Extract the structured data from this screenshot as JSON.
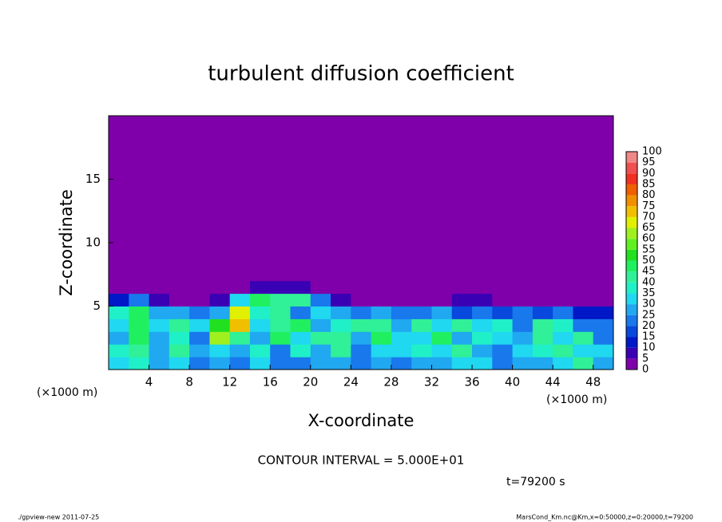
{
  "chart_data": {
    "type": "heatmap",
    "title": "turbulent diffusion coefficient",
    "xlabel": "X-coordinate",
    "ylabel": "Z-coordinate",
    "x_unit": "(×1000 m)",
    "y_unit": "(×1000 m)",
    "note": "CONTOUR INTERVAL = 5.000E+01",
    "time_label": "t=79200 s",
    "footer_left": "./gpview-new  2011-07-25",
    "footer_right": "MarsCond_Km.nc@Km,x=0:50000,z=0:20000,t=79200",
    "xlim": [
      0,
      50
    ],
    "ylim": [
      0,
      20
    ],
    "xticks": [
      4,
      8,
      12,
      16,
      20,
      24,
      28,
      32,
      36,
      40,
      44,
      48
    ],
    "yticks": [
      5,
      10,
      15
    ],
    "xbins": [
      0,
      2,
      4,
      6,
      8,
      10,
      12,
      14,
      16,
      18,
      20,
      22,
      24,
      26,
      28,
      30,
      32,
      34,
      36,
      38,
      40,
      42,
      44,
      46,
      48,
      50
    ],
    "ybins": [
      0,
      1,
      2,
      3,
      4,
      5,
      6,
      7,
      20
    ],
    "z": [
      [
        30,
        35,
        25,
        30,
        20,
        25,
        20,
        30,
        20,
        20,
        25,
        25,
        20,
        25,
        20,
        25,
        25,
        30,
        30,
        20,
        25,
        25,
        30,
        40,
        25
      ],
      [
        35,
        40,
        25,
        40,
        25,
        30,
        25,
        35,
        20,
        35,
        25,
        40,
        20,
        30,
        30,
        35,
        30,
        40,
        25,
        20,
        30,
        35,
        40,
        30,
        30
      ],
      [
        25,
        45,
        25,
        35,
        20,
        60,
        40,
        25,
        45,
        30,
        40,
        40,
        25,
        45,
        30,
        30,
        45,
        25,
        35,
        30,
        25,
        40,
        30,
        40,
        20
      ],
      [
        30,
        45,
        30,
        40,
        30,
        50,
        70,
        30,
        40,
        45,
        25,
        35,
        40,
        40,
        25,
        40,
        30,
        40,
        30,
        35,
        20,
        40,
        35,
        20,
        20
      ],
      [
        35,
        45,
        25,
        25,
        20,
        25,
        65,
        35,
        40,
        20,
        30,
        25,
        20,
        25,
        20,
        20,
        25,
        15,
        20,
        15,
        20,
        15,
        20,
        10,
        10
      ],
      [
        10,
        20,
        5,
        0,
        0,
        5,
        30,
        45,
        40,
        40,
        20,
        5,
        0,
        0,
        0,
        0,
        0,
        5,
        5,
        0,
        0,
        0,
        0,
        0,
        0
      ],
      [
        0,
        0,
        0,
        0,
        0,
        0,
        0,
        5,
        5,
        5,
        0,
        0,
        0,
        0,
        0,
        0,
        0,
        0,
        0,
        0,
        0,
        0,
        0,
        0,
        0
      ],
      [
        0,
        0,
        0,
        0,
        0,
        0,
        0,
        0,
        0,
        0,
        0,
        0,
        0,
        0,
        0,
        0,
        0,
        0,
        0,
        0,
        0,
        0,
        0,
        0,
        0
      ]
    ],
    "levels": [
      0,
      5,
      10,
      15,
      20,
      25,
      30,
      35,
      40,
      45,
      50,
      55,
      60,
      65,
      70,
      75,
      80,
      85,
      90,
      95,
      100
    ],
    "colors": [
      "#7f00aa",
      "#3a00b4",
      "#0018c8",
      "#0848dc",
      "#1878ec",
      "#20a8f0",
      "#20d8f0",
      "#20f0c8",
      "#30f098",
      "#20f060",
      "#20e020",
      "#60f020",
      "#a0f020",
      "#e0f000",
      "#f0c000",
      "#f09000",
      "#f06000",
      "#f03020",
      "#f05050",
      "#f08888"
    ]
  }
}
